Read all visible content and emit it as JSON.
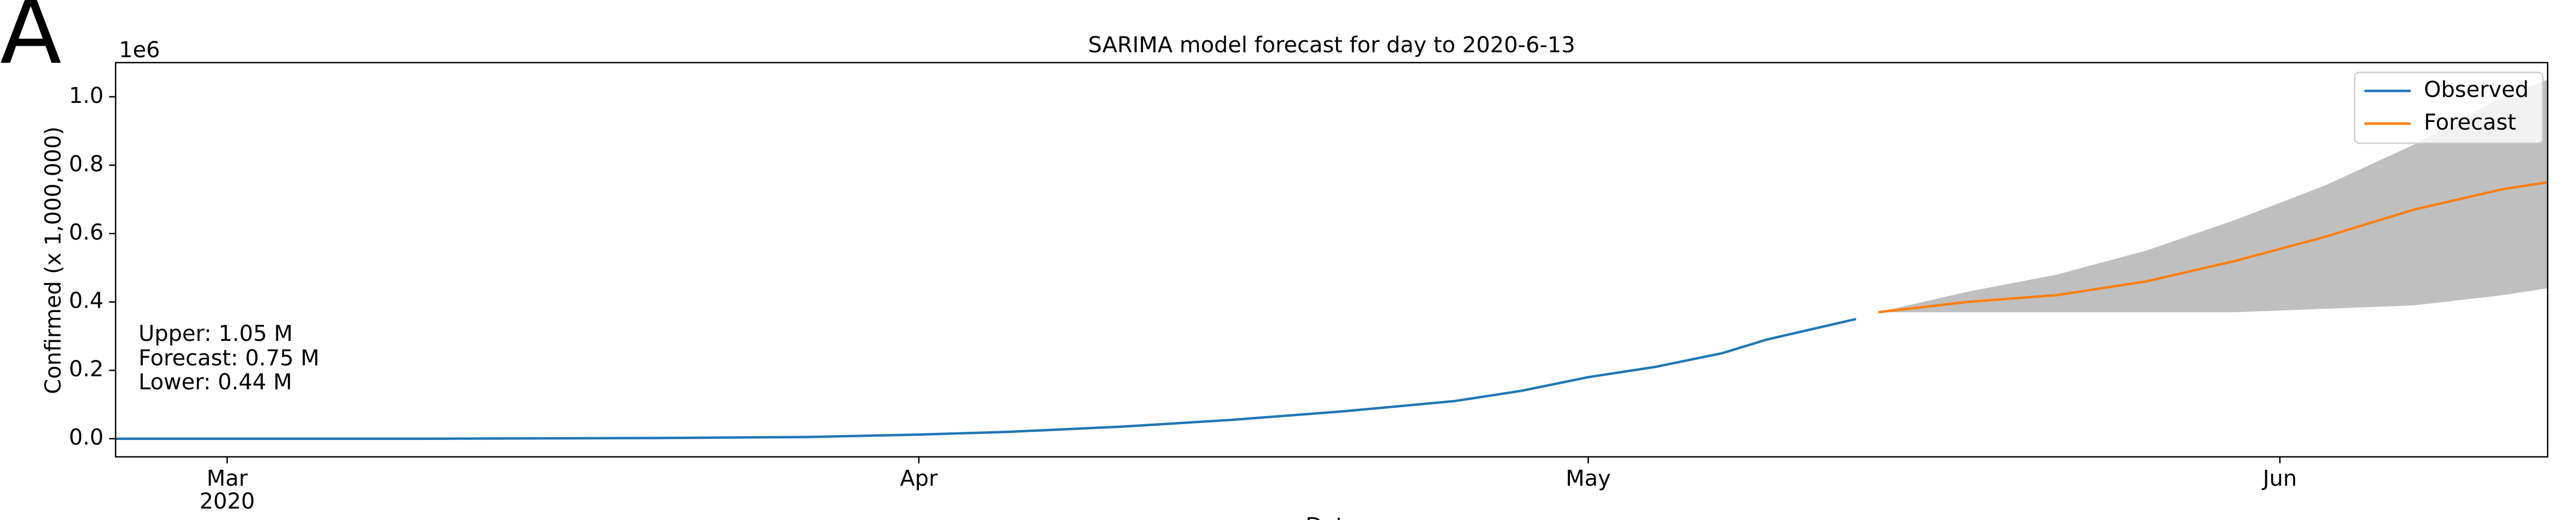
{
  "panel_label": "A",
  "chart_data": {
    "type": "line",
    "title": "SARIMA model forecast for day to 2020-6-13",
    "xlabel": "Date",
    "ylabel": "Confirmed (x 1,000,000)",
    "y_offset_label": "1e6",
    "x_year_label": "2020",
    "annotations": [
      "Upper: 1.05 M",
      "Forecast: 0.75 M",
      "Lower: 0.44 M"
    ],
    "xlim": [
      "2020-02-25",
      "2020-06-13"
    ],
    "xticks": [
      {
        "value": "2020-03-01",
        "label": "Mar"
      },
      {
        "value": "2020-04-01",
        "label": "Apr"
      },
      {
        "value": "2020-05-01",
        "label": "May"
      },
      {
        "value": "2020-06-01",
        "label": "Jun"
      }
    ],
    "ylim": [
      -0.053,
      1.1
    ],
    "yticks": [
      {
        "value": 0,
        "label": "0.0"
      },
      0.2,
      0.4,
      0.6,
      0.8,
      {
        "value": 1,
        "label": "1.0"
      }
    ],
    "grid": false,
    "legend": "upper right",
    "series": [
      {
        "name": "Observed",
        "color": "#1f77b4",
        "x": [
          "2020-02-25",
          "2020-03-10",
          "2020-03-20",
          "2020-03-27",
          "2020-04-01",
          "2020-04-05",
          "2020-04-10",
          "2020-04-15",
          "2020-04-20",
          "2020-04-25",
          "2020-04-28",
          "2020-05-01",
          "2020-05-04",
          "2020-05-07",
          "2020-05-09",
          "2020-05-11",
          "2020-05-13"
        ],
        "values": [
          0.0,
          0.0,
          0.002,
          0.005,
          0.012,
          0.02,
          0.035,
          0.055,
          0.08,
          0.11,
          0.14,
          0.18,
          0.21,
          0.25,
          0.29,
          0.32,
          0.35
        ]
      },
      {
        "name": "Forecast",
        "color": "#ff7f0e",
        "x": [
          "2020-05-14",
          "2020-05-18",
          "2020-05-22",
          "2020-05-26",
          "2020-05-30",
          "2020-06-03",
          "2020-06-07",
          "2020-06-11",
          "2020-06-13"
        ],
        "values": [
          0.37,
          0.4,
          0.42,
          0.46,
          0.52,
          0.59,
          0.67,
          0.73,
          0.75
        ]
      }
    ],
    "band": {
      "color": "#bfbfbf",
      "upper": [
        0.37,
        0.43,
        0.48,
        0.55,
        0.64,
        0.74,
        0.86,
        1.0,
        1.05
      ],
      "lower": [
        0.37,
        0.37,
        0.37,
        0.37,
        0.37,
        0.38,
        0.39,
        0.42,
        0.44
      ]
    }
  }
}
